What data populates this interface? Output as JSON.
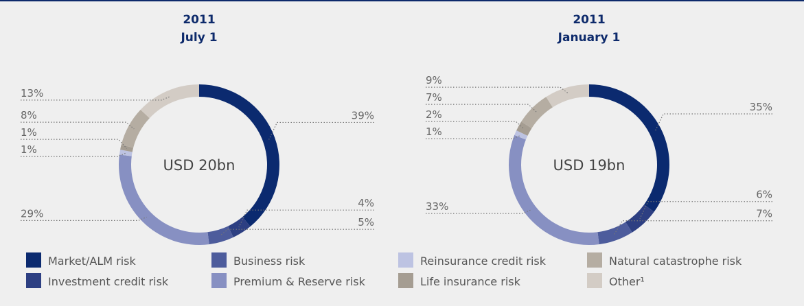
{
  "chart_data": [
    {
      "type": "pie",
      "title": "2011",
      "subtitle": "July 1",
      "center_label": "USD 20bn",
      "categories": [
        "Market/ALM risk",
        "Investment credit risk",
        "Business risk",
        "Premium & Reserve risk",
        "Reinsurance credit risk",
        "Life insurance risk",
        "Natural catastrophe risk",
        "Other¹"
      ],
      "colors": [
        "#0b2a6f",
        "#2d3f82",
        "#4d5c9c",
        "#8790c2",
        "#bdc3e2",
        "#a59d92",
        "#b5ada2",
        "#d3ccc5"
      ],
      "values": [
        39,
        4,
        5,
        29,
        1,
        1,
        8,
        13
      ],
      "value_labels": [
        "39%",
        "4%",
        "5%",
        "29%",
        "1%",
        "1%",
        "8%",
        "13%"
      ]
    },
    {
      "type": "pie",
      "title": "2011",
      "subtitle": "January 1",
      "center_label": "USD 19bn",
      "categories": [
        "Market/ALM risk",
        "Investment credit risk",
        "Business risk",
        "Premium & Reserve risk",
        "Reinsurance credit risk",
        "Life insurance risk",
        "Natural catastrophe risk",
        "Other¹"
      ],
      "colors": [
        "#0b2a6f",
        "#2d3f82",
        "#4d5c9c",
        "#8790c2",
        "#bdc3e2",
        "#a59d92",
        "#b5ada2",
        "#d3ccc5"
      ],
      "values": [
        35,
        6,
        7,
        33,
        1,
        2,
        7,
        9
      ],
      "value_labels": [
        "35%",
        "6%",
        "7%",
        "33%",
        "1%",
        "2%",
        "7%",
        "9%"
      ]
    }
  ]
}
